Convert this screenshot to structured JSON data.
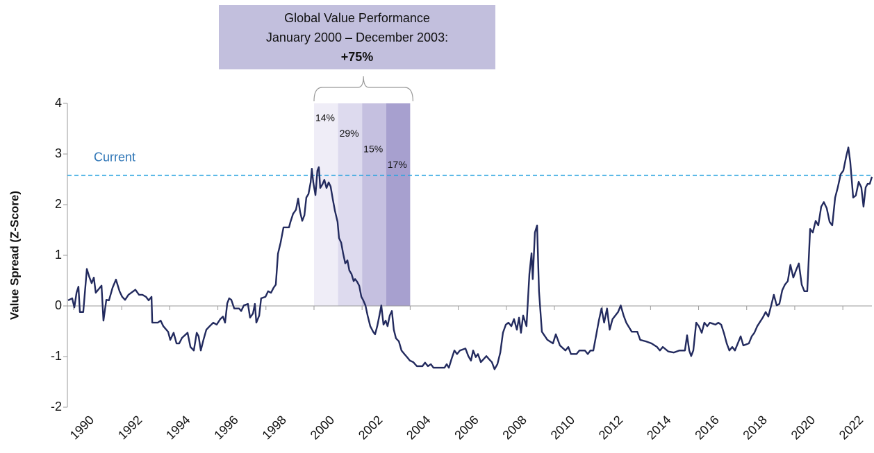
{
  "chart_data": {
    "type": "line",
    "y_label": "Value Spread (Z-Score)",
    "annotation": {
      "lines": [
        "Global Value Performance",
        "January 2000 – December 2003:",
        "+75%"
      ],
      "color": "#c2bfdd"
    },
    "reference_line": {
      "value": 2.58,
      "label": "Current",
      "color": "#29a3df"
    },
    "periods": [
      {
        "start": 2000,
        "end": 2001,
        "label": "14%",
        "color": "#efedf7"
      },
      {
        "start": 2001,
        "end": 2002,
        "label": "29%",
        "color": "#dddaee"
      },
      {
        "start": 2002,
        "end": 2003,
        "label": "15%",
        "color": "#c5c0e0"
      },
      {
        "start": 2003,
        "end": 2004,
        "label": "17%",
        "color": "#a7a0cf"
      }
    ],
    "color": "#222a5e",
    "xlim": [
      1989.74,
      2023.21
    ],
    "xticks": [
      1990,
      1992,
      1994,
      1996,
      1998,
      2000,
      2002,
      2004,
      2006,
      2008,
      2010,
      2012,
      2014,
      2016,
      2018,
      2020,
      2022
    ],
    "ylim": [
      -2,
      4
    ],
    "yticks": [
      -2,
      -1,
      0,
      1,
      2,
      3,
      4
    ],
    "x": [
      1989.77,
      1989.94,
      1990.03,
      1990.12,
      1990.2,
      1990.26,
      1990.4,
      1990.55,
      1990.66,
      1990.75,
      1990.84,
      1990.92,
      1991.16,
      1991.24,
      1991.36,
      1991.47,
      1991.62,
      1991.76,
      1991.91,
      1992.02,
      1992.14,
      1992.28,
      1992.57,
      1992.72,
      1992.86,
      1993.01,
      1993.12,
      1993.24,
      1993.27,
      1993.5,
      1993.62,
      1993.73,
      1993.93,
      1994.02,
      1994.16,
      1994.28,
      1994.39,
      1994.51,
      1994.74,
      1994.86,
      1995.0,
      1995.12,
      1995.2,
      1995.29,
      1995.4,
      1995.52,
      1995.66,
      1995.81,
      1995.95,
      1996.1,
      1996.21,
      1996.3,
      1996.39,
      1996.47,
      1996.56,
      1996.68,
      1996.88,
      1996.97,
      1997.08,
      1997.25,
      1997.34,
      1997.46,
      1997.54,
      1997.6,
      1997.72,
      1997.8,
      1997.98,
      1998.09,
      1998.21,
      1998.32,
      1998.41,
      1998.5,
      1998.61,
      1998.73,
      1998.96,
      1999.02,
      1999.13,
      1999.25,
      1999.34,
      1999.42,
      1999.51,
      1999.6,
      1999.68,
      1999.77,
      1999.86,
      1999.91,
      1999.97,
      2000.06,
      2000.14,
      2000.2,
      2000.26,
      2000.35,
      2000.43,
      2000.52,
      2000.61,
      2000.69,
      2000.78,
      2000.87,
      2000.98,
      2001.04,
      2001.13,
      2001.21,
      2001.3,
      2001.39,
      2001.47,
      2001.56,
      2001.65,
      2001.71,
      2001.79,
      2001.88,
      2001.97,
      2002.05,
      2002.14,
      2002.23,
      2002.34,
      2002.46,
      2002.54,
      2002.63,
      2002.72,
      2002.8,
      2002.89,
      2002.98,
      2003.06,
      2003.15,
      2003.24,
      2003.32,
      2003.41,
      2003.53,
      2003.64,
      2003.76,
      2003.87,
      2003.99,
      2004.13,
      2004.28,
      2004.51,
      2004.62,
      2004.74,
      2004.86,
      2004.97,
      2005.2,
      2005.43,
      2005.52,
      2005.61,
      2005.72,
      2005.84,
      2005.95,
      2006.07,
      2006.3,
      2006.42,
      2006.53,
      2006.62,
      2006.73,
      2006.82,
      2006.94,
      2007.17,
      2007.28,
      2007.4,
      2007.51,
      2007.63,
      2007.75,
      2007.86,
      2007.98,
      2008.09,
      2008.21,
      2008.32,
      2008.44,
      2008.53,
      2008.61,
      2008.7,
      2008.84,
      2008.96,
      2009.05,
      2009.1,
      2009.19,
      2009.28,
      2009.36,
      2009.48,
      2009.71,
      2009.94,
      2010.06,
      2010.23,
      2010.46,
      2010.58,
      2010.69,
      2010.92,
      2011.04,
      2011.27,
      2011.39,
      2011.5,
      2011.62,
      2011.73,
      2011.85,
      2011.96,
      2012.07,
      2012.19,
      2012.3,
      2012.42,
      2012.65,
      2012.76,
      2012.88,
      2012.99,
      2013.22,
      2013.45,
      2013.57,
      2013.81,
      2014.04,
      2014.27,
      2014.39,
      2014.51,
      2014.74,
      2014.97,
      2015.2,
      2015.43,
      2015.52,
      2015.61,
      2015.69,
      2015.78,
      2015.9,
      2016.01,
      2016.13,
      2016.24,
      2016.36,
      2016.47,
      2016.7,
      2016.82,
      2016.94,
      2017.05,
      2017.17,
      2017.28,
      2017.4,
      2017.51,
      2017.63,
      2017.75,
      2017.86,
      2018.09,
      2018.21,
      2018.32,
      2018.44,
      2018.67,
      2018.79,
      2018.9,
      2019.02,
      2019.13,
      2019.25,
      2019.36,
      2019.48,
      2019.59,
      2019.71,
      2019.82,
      2019.94,
      2020.05,
      2020.17,
      2020.29,
      2020.4,
      2020.52,
      2020.64,
      2020.75,
      2020.87,
      2020.98,
      2021.1,
      2021.21,
      2021.33,
      2021.45,
      2021.56,
      2021.68,
      2021.79,
      2021.91,
      2022.02,
      2022.14,
      2022.23,
      2022.31,
      2022.43,
      2022.54,
      2022.66,
      2022.77,
      2022.86,
      2022.95,
      2023.03,
      2023.12,
      2023.21
    ],
    "values": [
      0.11,
      0.15,
      -0.03,
      0.26,
      0.38,
      -0.12,
      -0.12,
      0.73,
      0.56,
      0.45,
      0.56,
      0.26,
      0.4,
      -0.29,
      0.12,
      0.11,
      0.36,
      0.52,
      0.29,
      0.18,
      0.12,
      0.22,
      0.32,
      0.22,
      0.22,
      0.18,
      0.11,
      0.18,
      -0.33,
      -0.33,
      -0.29,
      -0.4,
      -0.51,
      -0.67,
      -0.53,
      -0.74,
      -0.74,
      -0.63,
      -0.53,
      -0.81,
      -0.88,
      -0.53,
      -0.6,
      -0.88,
      -0.67,
      -0.47,
      -0.4,
      -0.33,
      -0.37,
      -0.26,
      -0.21,
      -0.33,
      0.05,
      0.15,
      0.12,
      -0.05,
      -0.05,
      -0.1,
      0.01,
      0.04,
      -0.23,
      -0.15,
      0.04,
      -0.33,
      -0.19,
      0.15,
      0.18,
      0.29,
      0.26,
      0.36,
      0.42,
      1.03,
      1.25,
      1.55,
      1.55,
      1.66,
      1.82,
      1.9,
      2.12,
      1.86,
      1.68,
      1.79,
      2.14,
      2.21,
      2.44,
      2.71,
      2.44,
      2.19,
      2.67,
      2.74,
      2.33,
      2.4,
      2.49,
      2.33,
      2.44,
      2.36,
      2.11,
      1.88,
      1.66,
      1.34,
      1.25,
      1.04,
      0.84,
      0.9,
      0.7,
      0.63,
      0.49,
      0.53,
      0.48,
      0.4,
      0.18,
      0.11,
      0.01,
      -0.19,
      -0.4,
      -0.51,
      -0.56,
      -0.4,
      -0.19,
      0.01,
      -0.37,
      -0.29,
      -0.4,
      -0.19,
      -0.1,
      -0.47,
      -0.64,
      -0.7,
      -0.88,
      -0.95,
      -1.01,
      -1.08,
      -1.11,
      -1.19,
      -1.19,
      -1.12,
      -1.19,
      -1.15,
      -1.22,
      -1.22,
      -1.22,
      -1.15,
      -1.22,
      -1.05,
      -0.88,
      -0.95,
      -0.88,
      -0.84,
      -0.99,
      -1.08,
      -0.88,
      -1.01,
      -0.95,
      -1.11,
      -0.99,
      -1.05,
      -1.11,
      -1.25,
      -1.15,
      -0.92,
      -0.53,
      -0.37,
      -0.33,
      -0.4,
      -0.26,
      -0.47,
      -0.23,
      -0.53,
      -0.19,
      -0.4,
      0.63,
      1.04,
      0.53,
      1.45,
      1.59,
      0.29,
      -0.51,
      -0.67,
      -0.74,
      -0.56,
      -0.78,
      -0.88,
      -0.81,
      -0.95,
      -0.95,
      -0.88,
      -0.88,
      -0.95,
      -0.88,
      -0.88,
      -0.6,
      -0.29,
      -0.05,
      -0.33,
      -0.05,
      -0.47,
      -0.26,
      -0.12,
      0.01,
      -0.19,
      -0.33,
      -0.51,
      -0.51,
      -0.67,
      -0.7,
      -0.74,
      -0.81,
      -0.88,
      -0.81,
      -0.9,
      -0.92,
      -0.88,
      -0.88,
      -0.58,
      -0.88,
      -0.99,
      -0.88,
      -0.33,
      -0.4,
      -0.53,
      -0.33,
      -0.4,
      -0.33,
      -0.37,
      -0.33,
      -0.37,
      -0.53,
      -0.74,
      -0.88,
      -0.81,
      -0.88,
      -0.74,
      -0.6,
      -0.78,
      -0.74,
      -0.6,
      -0.53,
      -0.4,
      -0.23,
      -0.12,
      -0.21,
      0.01,
      0.22,
      0.01,
      0.04,
      0.31,
      0.42,
      0.49,
      0.81,
      0.56,
      0.7,
      0.84,
      0.42,
      0.29,
      0.29,
      1.52,
      1.45,
      1.68,
      1.59,
      1.96,
      2.05,
      1.93,
      1.66,
      1.59,
      2.14,
      2.34,
      2.6,
      2.67,
      2.95,
      3.13,
      2.84,
      2.14,
      2.18,
      2.45,
      2.34,
      1.96,
      2.34,
      2.41,
      2.41,
      2.55
    ]
  }
}
